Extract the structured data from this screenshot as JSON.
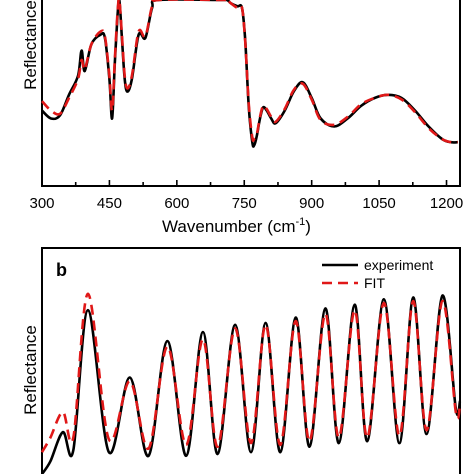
{
  "chart_data": [
    {
      "panel_label": "",
      "type": "line",
      "xlabel": "Wavenumber (cm",
      "xlabel_sup": "-1",
      "xlabel_close": ")",
      "ylabel": "Reflectance",
      "xlim": [
        300,
        1230
      ],
      "ylim": [
        0,
        1
      ],
      "xticks": [
        300,
        450,
        600,
        750,
        900,
        1050,
        1200
      ],
      "grid": false,
      "series": [
        {
          "role": "experiment",
          "color": "#000000",
          "x": [
            300,
            320,
            340,
            360,
            380,
            388,
            395,
            410,
            430,
            440,
            450,
            456,
            462,
            468,
            472,
            478,
            484,
            490,
            500,
            515,
            530,
            545,
            560,
            700,
            712,
            720,
            735,
            745,
            752,
            760,
            768,
            772,
            778,
            785,
            792,
            800,
            810,
            820,
            840,
            860,
            880,
            900,
            920,
            950,
            980,
            1010,
            1040,
            1070,
            1100,
            1130,
            1160,
            1190,
            1210,
            1225
          ],
          "y": [
            0.3,
            0.25,
            0.27,
            0.4,
            0.52,
            0.68,
            0.55,
            0.72,
            0.78,
            0.76,
            0.5,
            0.25,
            0.6,
            0.9,
            1.0,
            0.75,
            0.5,
            0.42,
            0.5,
            0.78,
            0.76,
            0.95,
            1.0,
            1.0,
            1.0,
            0.98,
            0.96,
            0.95,
            0.75,
            0.32,
            0.1,
            0.08,
            0.14,
            0.25,
            0.32,
            0.3,
            0.25,
            0.22,
            0.3,
            0.42,
            0.48,
            0.38,
            0.25,
            0.2,
            0.25,
            0.33,
            0.38,
            0.4,
            0.38,
            0.3,
            0.2,
            0.12,
            0.1,
            0.1
          ]
        },
        {
          "role": "fit",
          "color": "#e01818",
          "x": [
            300,
            320,
            340,
            360,
            380,
            388,
            395,
            410,
            430,
            440,
            450,
            456,
            462,
            468,
            472,
            478,
            484,
            490,
            500,
            515,
            530,
            545,
            560,
            700,
            712,
            720,
            735,
            745,
            752,
            760,
            768,
            772,
            778,
            785,
            792,
            800,
            810,
            820,
            840,
            860,
            880,
            900,
            920,
            950,
            980,
            1010,
            1040,
            1070,
            1100,
            1130,
            1160,
            1190,
            1210,
            1225
          ],
          "y": [
            0.36,
            0.3,
            0.28,
            0.38,
            0.5,
            0.62,
            0.56,
            0.72,
            0.8,
            0.77,
            0.52,
            0.3,
            0.62,
            0.92,
            1.0,
            0.77,
            0.52,
            0.44,
            0.52,
            0.8,
            0.77,
            0.96,
            1.0,
            1.0,
            1.0,
            0.98,
            0.95,
            0.95,
            0.74,
            0.34,
            0.13,
            0.12,
            0.15,
            0.26,
            0.33,
            0.31,
            0.26,
            0.23,
            0.31,
            0.43,
            0.47,
            0.37,
            0.24,
            0.21,
            0.26,
            0.34,
            0.38,
            0.4,
            0.37,
            0.29,
            0.19,
            0.12,
            0.1,
            0.1
          ]
        }
      ]
    },
    {
      "panel_label": "b",
      "type": "line",
      "xlabel": "",
      "ylabel": "Reflectance",
      "xlim": [
        0,
        1
      ],
      "ylim": [
        0,
        1
      ],
      "grid": false,
      "legend": {
        "placement": "top-right",
        "entries": [
          "experiment",
          "FIT"
        ]
      },
      "series": [
        {
          "name": "experiment",
          "color": "#000000",
          "x": [
            0.0,
            0.02,
            0.05,
            0.075,
            0.11,
            0.16,
            0.21,
            0.255,
            0.3,
            0.345,
            0.385,
            0.42,
            0.462,
            0.5,
            0.535,
            0.57,
            0.607,
            0.64,
            0.678,
            0.71,
            0.748,
            0.778,
            0.818,
            0.855,
            0.888,
            0.92,
            0.958,
            0.99,
            1.0
          ],
          "y": [
            0.0,
            0.07,
            0.23,
            0.13,
            0.9,
            0.12,
            0.53,
            0.1,
            0.73,
            0.1,
            0.78,
            0.11,
            0.82,
            0.12,
            0.83,
            0.12,
            0.86,
            0.15,
            0.91,
            0.17,
            0.93,
            0.18,
            0.96,
            0.17,
            0.97,
            0.22,
            0.98,
            0.36,
            0.4
          ]
        },
        {
          "name": "FIT",
          "color": "#e01818",
          "x": [
            0.0,
            0.02,
            0.05,
            0.075,
            0.11,
            0.16,
            0.21,
            0.255,
            0.3,
            0.345,
            0.385,
            0.42,
            0.462,
            0.5,
            0.535,
            0.57,
            0.607,
            0.64,
            0.678,
            0.71,
            0.748,
            0.778,
            0.818,
            0.855,
            0.888,
            0.92,
            0.958,
            0.99,
            1.0
          ],
          "y": [
            0.12,
            0.2,
            0.34,
            0.2,
            0.99,
            0.19,
            0.51,
            0.14,
            0.7,
            0.16,
            0.74,
            0.15,
            0.8,
            0.17,
            0.82,
            0.16,
            0.84,
            0.18,
            0.88,
            0.2,
            0.9,
            0.2,
            0.94,
            0.21,
            0.95,
            0.24,
            0.95,
            0.34,
            0.38
          ]
        }
      ]
    }
  ]
}
